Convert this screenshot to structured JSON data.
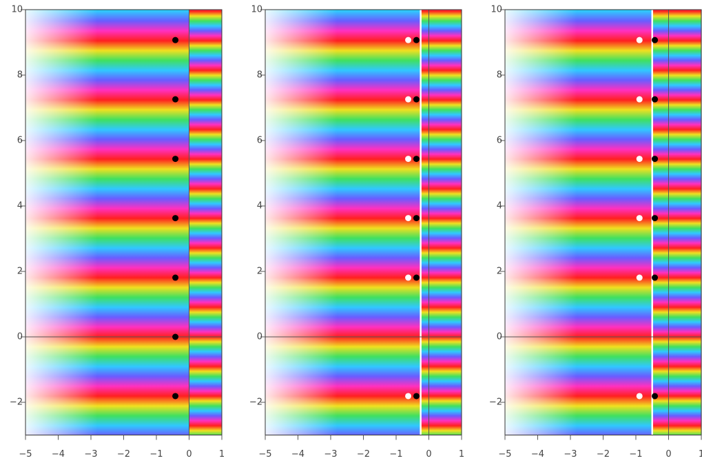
{
  "chart_data": [
    {
      "type": "scatter",
      "xlim": [
        -5,
        1
      ],
      "ylim": [
        -3,
        10
      ],
      "xticks": [
        {
          "value": -5,
          "label": "−5"
        },
        {
          "value": -4,
          "label": "−4"
        },
        {
          "value": -3,
          "label": "−3"
        },
        {
          "value": -2,
          "label": "−2"
        },
        {
          "value": -1,
          "label": "−1"
        },
        0,
        1
      ],
      "yticks": [
        {
          "value": -2,
          "label": "−2"
        },
        0,
        2,
        4,
        6,
        8,
        10
      ],
      "branch_cut": 0,
      "series": [
        {
          "color": "#000000",
          "x": [
            -0.42,
            -0.42,
            -0.42,
            -0.42,
            -0.42,
            -0.42,
            -0.42
          ],
          "values": [
            9.07,
            7.26,
            5.44,
            3.63,
            1.81,
            0,
            -1.81
          ]
        }
      ]
    },
    {
      "type": "scatter",
      "xlim": [
        -5,
        1
      ],
      "ylim": [
        -3,
        10
      ],
      "xticks": [
        {
          "value": -5,
          "label": "−5"
        },
        {
          "value": -4,
          "label": "−4"
        },
        {
          "value": -3,
          "label": "−3"
        },
        {
          "value": -2,
          "label": "−2"
        },
        {
          "value": -1,
          "label": "−1"
        },
        0,
        1
      ],
      "yticks": [
        {
          "value": -2,
          "label": "−2"
        },
        0,
        2,
        4,
        6,
        8,
        10
      ],
      "branch_cut": -0.25,
      "series": [
        {
          "color": "#ffffff",
          "x": [
            -0.63,
            -0.63,
            -0.63,
            -0.63,
            -0.63,
            -0.63
          ],
          "values": [
            9.07,
            7.26,
            5.44,
            3.63,
            1.81,
            -1.81
          ]
        },
        {
          "color": "#000000",
          "x": [
            -0.38,
            -0.38,
            -0.38,
            -0.38,
            -0.38,
            -0.38
          ],
          "values": [
            9.07,
            7.26,
            5.44,
            3.63,
            1.81,
            -1.81
          ]
        }
      ]
    },
    {
      "type": "scatter",
      "xlim": [
        -5,
        1
      ],
      "ylim": [
        -3,
        10
      ],
      "xticks": [
        {
          "value": -5,
          "label": "−5"
        },
        {
          "value": -4,
          "label": "−4"
        },
        {
          "value": -3,
          "label": "−3"
        },
        {
          "value": -2,
          "label": "−2"
        },
        {
          "value": -1,
          "label": "−1"
        },
        0,
        1
      ],
      "yticks": [
        {
          "value": -2,
          "label": "−2"
        },
        0,
        2,
        4,
        6,
        8,
        10
      ],
      "branch_cut": -0.5,
      "series": [
        {
          "color": "#ffffff",
          "x": [
            -0.89,
            -0.89,
            -0.89,
            -0.89,
            -0.89,
            -0.89
          ],
          "values": [
            9.07,
            7.26,
            5.44,
            3.63,
            1.81,
            -1.81
          ]
        },
        {
          "color": "#000000",
          "x": [
            -0.42,
            -0.42,
            -0.42,
            -0.42,
            -0.42,
            -0.42
          ],
          "values": [
            9.07,
            7.26,
            5.44,
            3.63,
            1.81,
            -1.81
          ]
        }
      ]
    }
  ]
}
